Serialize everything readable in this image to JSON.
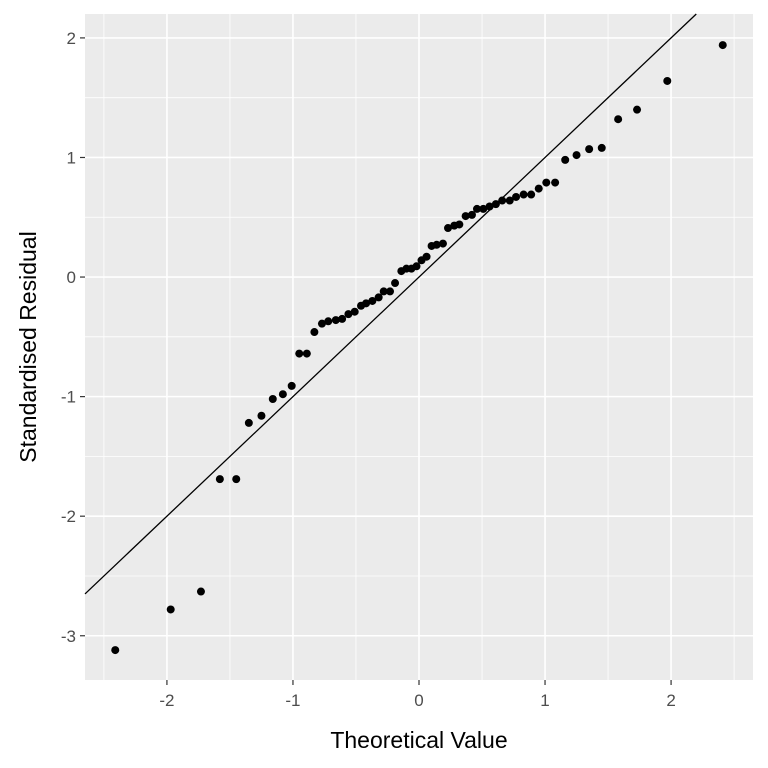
{
  "chart_data": {
    "type": "scatter",
    "title": "",
    "xlabel": "Theoretical Value",
    "ylabel": "Standardised Residual",
    "xlim": [
      -2.65,
      2.65
    ],
    "ylim": [
      -3.37,
      2.2
    ],
    "xticks": [
      -2,
      -1,
      0,
      1,
      2
    ],
    "yticks": [
      -3,
      -2,
      -1,
      0,
      1,
      2
    ],
    "xtick_labels": [
      "-2",
      "-1",
      "0",
      "1",
      "2"
    ],
    "ytick_labels": [
      "-3",
      "-2",
      "-1",
      "0",
      "1",
      "2"
    ],
    "grid": true,
    "reference_line": {
      "slope": 1.0,
      "intercept": 0.0
    },
    "colors": {
      "panel": "#ebebeb",
      "grid": "#ffffff",
      "point": "#000000",
      "line": "#000000"
    },
    "points": [
      {
        "x": -2.41,
        "y": -3.12
      },
      {
        "x": -1.97,
        "y": -2.78
      },
      {
        "x": -1.73,
        "y": -2.63
      },
      {
        "x": -1.58,
        "y": -1.69
      },
      {
        "x": -1.45,
        "y": -1.69
      },
      {
        "x": -1.35,
        "y": -1.22
      },
      {
        "x": -1.25,
        "y": -1.16
      },
      {
        "x": -1.16,
        "y": -1.02
      },
      {
        "x": -1.08,
        "y": -0.98
      },
      {
        "x": -1.01,
        "y": -0.91
      },
      {
        "x": -0.95,
        "y": -0.64
      },
      {
        "x": -0.89,
        "y": -0.64
      },
      {
        "x": -0.83,
        "y": -0.46
      },
      {
        "x": -0.77,
        "y": -0.39
      },
      {
        "x": -0.72,
        "y": -0.37
      },
      {
        "x": -0.66,
        "y": -0.36
      },
      {
        "x": -0.61,
        "y": -0.35
      },
      {
        "x": -0.56,
        "y": -0.31
      },
      {
        "x": -0.51,
        "y": -0.29
      },
      {
        "x": -0.46,
        "y": -0.24
      },
      {
        "x": -0.42,
        "y": -0.22
      },
      {
        "x": -0.37,
        "y": -0.2
      },
      {
        "x": -0.32,
        "y": -0.17
      },
      {
        "x": -0.28,
        "y": -0.12
      },
      {
        "x": -0.23,
        "y": -0.12
      },
      {
        "x": -0.19,
        "y": -0.05
      },
      {
        "x": -0.14,
        "y": 0.05
      },
      {
        "x": -0.1,
        "y": 0.07
      },
      {
        "x": -0.06,
        "y": 0.07
      },
      {
        "x": -0.02,
        "y": 0.09
      },
      {
        "x": 0.02,
        "y": 0.14
      },
      {
        "x": 0.06,
        "y": 0.17
      },
      {
        "x": 0.1,
        "y": 0.26
      },
      {
        "x": 0.14,
        "y": 0.27
      },
      {
        "x": 0.19,
        "y": 0.28
      },
      {
        "x": 0.23,
        "y": 0.41
      },
      {
        "x": 0.28,
        "y": 0.43
      },
      {
        "x": 0.32,
        "y": 0.44
      },
      {
        "x": 0.37,
        "y": 0.51
      },
      {
        "x": 0.42,
        "y": 0.52
      },
      {
        "x": 0.46,
        "y": 0.57
      },
      {
        "x": 0.51,
        "y": 0.57
      },
      {
        "x": 0.56,
        "y": 0.59
      },
      {
        "x": 0.61,
        "y": 0.61
      },
      {
        "x": 0.66,
        "y": 0.64
      },
      {
        "x": 0.72,
        "y": 0.64
      },
      {
        "x": 0.77,
        "y": 0.67
      },
      {
        "x": 0.83,
        "y": 0.69
      },
      {
        "x": 0.89,
        "y": 0.69
      },
      {
        "x": 0.95,
        "y": 0.74
      },
      {
        "x": 1.01,
        "y": 0.79
      },
      {
        "x": 1.08,
        "y": 0.79
      },
      {
        "x": 1.16,
        "y": 0.98
      },
      {
        "x": 1.25,
        "y": 1.02
      },
      {
        "x": 1.35,
        "y": 1.07
      },
      {
        "x": 1.45,
        "y": 1.08
      },
      {
        "x": 1.58,
        "y": 1.32
      },
      {
        "x": 1.73,
        "y": 1.4
      },
      {
        "x": 1.97,
        "y": 1.64
      },
      {
        "x": 2.41,
        "y": 1.94
      }
    ]
  }
}
